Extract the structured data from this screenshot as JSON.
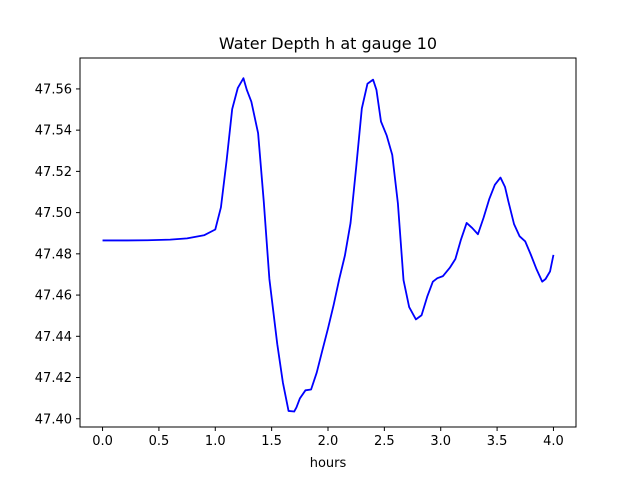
{
  "figure": {
    "background": "#ffffff"
  },
  "chart_data": {
    "type": "line",
    "title": "Water Depth h at gauge 10",
    "xlabel": "hours",
    "ylabel": "",
    "xlim": [
      -0.2,
      4.2
    ],
    "ylim": [
      47.396,
      47.575
    ],
    "grid": false,
    "legend": "none",
    "x_ticks": [
      "0.0",
      "0.5",
      "1.0",
      "1.5",
      "2.0",
      "2.5",
      "3.0",
      "3.5",
      "4.0"
    ],
    "y_ticks": [
      "47.40",
      "47.42",
      "47.44",
      "47.46",
      "47.48",
      "47.50",
      "47.52",
      "47.54",
      "47.56"
    ],
    "series": [
      {
        "color": "#0000ff",
        "x": [
          0.0,
          0.2,
          0.4,
          0.6,
          0.75,
          0.9,
          1.0,
          1.05,
          1.1,
          1.15,
          1.2,
          1.25,
          1.28,
          1.32,
          1.38,
          1.43,
          1.48,
          1.55,
          1.6,
          1.65,
          1.7,
          1.72,
          1.75,
          1.8,
          1.85,
          1.9,
          1.95,
          2.0,
          2.05,
          2.1,
          2.15,
          2.2,
          2.25,
          2.3,
          2.35,
          2.4,
          2.43,
          2.47,
          2.52,
          2.57,
          2.62,
          2.67,
          2.72,
          2.78,
          2.83,
          2.88,
          2.93,
          2.97,
          3.02,
          3.08,
          3.13,
          3.18,
          3.23,
          3.28,
          3.33,
          3.38,
          3.43,
          3.48,
          3.53,
          3.57,
          3.6,
          3.65,
          3.7,
          3.75,
          3.8,
          3.85,
          3.9,
          3.93,
          3.97,
          4.0
        ],
        "y": [
          47.4865,
          47.4865,
          47.4866,
          47.4869,
          47.4875,
          47.489,
          47.4918,
          47.5025,
          47.525,
          47.5502,
          47.5605,
          47.5652,
          47.5595,
          47.5538,
          47.5385,
          47.5055,
          47.4678,
          47.4362,
          47.4175,
          47.4038,
          47.4035,
          47.4055,
          47.4098,
          47.4138,
          47.4142,
          47.4224,
          47.4332,
          47.4438,
          47.4552,
          47.4678,
          47.4792,
          47.495,
          47.522,
          47.5505,
          47.5625,
          47.5645,
          47.5595,
          47.5442,
          47.5375,
          47.528,
          47.5045,
          47.4672,
          47.4542,
          47.4482,
          47.4502,
          47.4592,
          47.4665,
          47.4682,
          47.4692,
          47.4732,
          47.4775,
          47.487,
          47.495,
          47.4925,
          47.4895,
          47.4975,
          47.5065,
          47.5135,
          47.517,
          47.5125,
          47.5055,
          47.4945,
          47.4885,
          47.486,
          47.4795,
          47.4725,
          47.4665,
          47.4678,
          47.4715,
          47.4795
        ]
      }
    ]
  }
}
